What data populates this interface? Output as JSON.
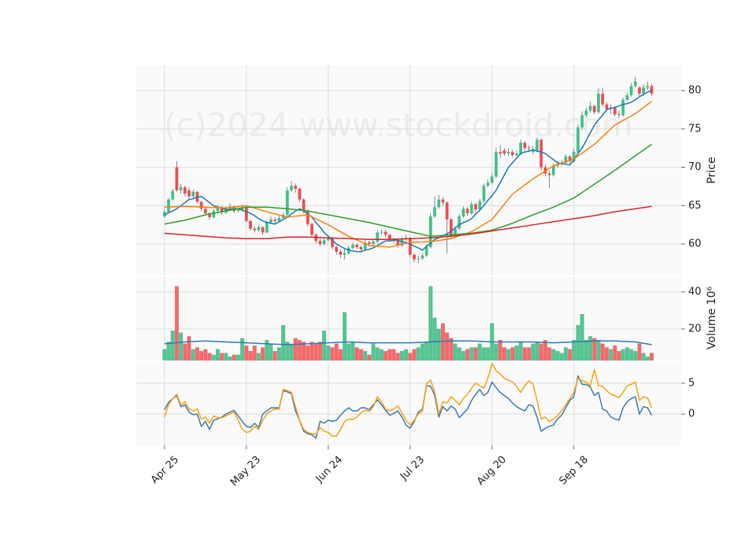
{
  "chart_data": [
    {
      "type": "candlestick",
      "watermark": "(c)2024 www.stockdroid.com",
      "ylabel": "Price",
      "ylim": [
        55.9,
        83.3
      ],
      "yticks": [
        60,
        65,
        70,
        75,
        80
      ],
      "grid": true,
      "up_color": "#3ec287",
      "down_color": "#ef4b52",
      "open": [
        63.6,
        64.2,
        65.8,
        70.0,
        67.0,
        67.4,
        67.0,
        66.2,
        66.8,
        65.5,
        64.6,
        64.0,
        63.5,
        64.3,
        64.8,
        64.1,
        64.6,
        64.9,
        64.3,
        64.5,
        64.8,
        63.0,
        62.0,
        61.8,
        62.2,
        61.5,
        62.8,
        63.2,
        63.0,
        63.4,
        63.8,
        67.0,
        67.6,
        67.2,
        65.8,
        64.3,
        62.6,
        61.2,
        60.4,
        60.0,
        60.5,
        60.8,
        59.6,
        59.0,
        58.6,
        58.8,
        59.5,
        59.9,
        59.6,
        59.3,
        60.2,
        60.0,
        60.3,
        61.5,
        61.6,
        61.2,
        60.6,
        60.4,
        59.8,
        60.6,
        60.8,
        58.6,
        58.0,
        58.1,
        58.5,
        59.6,
        63.6,
        64.8,
        65.8,
        65.4,
        63.2,
        61.0,
        62.0,
        63.6,
        64.6,
        64.0,
        65.2,
        64.5,
        65.6,
        67.6,
        68.0,
        68.8,
        72.0,
        72.2,
        71.8,
        72.0,
        71.6,
        71.8,
        73.2,
        72.5,
        72.0,
        72.2,
        73.6,
        70.0,
        69.2,
        69.0,
        70.2,
        70.4,
        70.6,
        71.4,
        70.8,
        72.0,
        75.2,
        76.8,
        77.4,
        78.0,
        77.2,
        79.6,
        78.2,
        77.6,
        77.8,
        76.9,
        76.8,
        78.8,
        79.4,
        80.6,
        80.4,
        79.6,
        80.4,
        80.6
      ],
      "high": [
        64.5,
        66.0,
        67.2,
        70.8,
        67.8,
        67.6,
        67.4,
        67.1,
        66.9,
        65.6,
        64.9,
        64.2,
        64.6,
        65.1,
        65.0,
        64.9,
        65.3,
        65.0,
        64.8,
        65.1,
        64.9,
        63.2,
        62.3,
        62.5,
        62.3,
        63.1,
        63.6,
        63.5,
        63.7,
        64.1,
        67.4,
        68.2,
        67.9,
        67.4,
        66.0,
        64.5,
        62.8,
        61.4,
        60.7,
        60.9,
        61.1,
        60.9,
        59.8,
        59.3,
        59.3,
        59.8,
        60.2,
        60.1,
        59.8,
        60.5,
        60.4,
        60.6,
        61.8,
        61.9,
        61.8,
        61.3,
        60.8,
        60.6,
        60.9,
        61.2,
        60.9,
        58.8,
        58.5,
        58.8,
        59.9,
        64.0,
        66.2,
        66.4,
        66.1,
        65.6,
        63.4,
        62.3,
        63.9,
        64.9,
        64.8,
        65.5,
        65.4,
        65.9,
        67.9,
        68.4,
        69.2,
        72.6,
        72.9,
        72.5,
        72.5,
        72.3,
        72.2,
        73.6,
        73.4,
        72.9,
        72.8,
        73.9,
        73.8,
        70.4,
        69.6,
        70.5,
        70.8,
        71.0,
        71.7,
        71.6,
        72.4,
        75.6,
        77.3,
        77.8,
        78.6,
        78.2,
        80.3,
        80.4,
        78.5,
        78.2,
        78.0,
        77.4,
        79.1,
        79.8,
        81.0,
        81.8,
        80.6,
        80.8,
        81.2,
        80.9
      ],
      "low": [
        63.4,
        64.0,
        65.6,
        66.8,
        66.6,
        66.2,
        65.9,
        66.0,
        65.3,
        64.3,
        63.7,
        63.1,
        63.3,
        64.0,
        63.8,
        63.9,
        64.4,
        64.0,
        64.1,
        64.3,
        62.8,
        61.7,
        61.5,
        61.6,
        61.2,
        61.4,
        62.6,
        62.7,
        62.8,
        63.2,
        63.6,
        66.8,
        66.7,
        65.5,
        64.0,
        62.3,
        60.9,
        60.1,
        59.7,
        59.8,
        60.3,
        59.3,
        58.6,
        58.2,
        58.0,
        58.6,
        59.3,
        59.3,
        59.0,
        59.1,
        59.7,
        59.8,
        60.1,
        61.2,
        60.9,
        60.3,
        60.1,
        59.5,
        59.6,
        60.4,
        58.3,
        57.6,
        57.5,
        57.9,
        58.3,
        59.4,
        63.4,
        64.6,
        65.0,
        58.8,
        60.7,
        60.8,
        61.8,
        63.4,
        63.7,
        63.8,
        64.2,
        64.3,
        65.4,
        67.4,
        67.8,
        68.6,
        71.2,
        71.5,
        71.5,
        71.3,
        71.4,
        71.6,
        72.2,
        72.0,
        71.7,
        72.0,
        69.6,
        68.8,
        67.3,
        68.8,
        69.9,
        70.2,
        70.4,
        70.5,
        70.6,
        71.8,
        74.9,
        76.5,
        77.1,
        76.9,
        77.0,
        77.9,
        77.3,
        77.0,
        76.6,
        76.4,
        76.6,
        78.6,
        79.2,
        80.4,
        79.3,
        79.3,
        80.1,
        79.3
      ],
      "close": [
        64.2,
        65.8,
        66.9,
        67.0,
        67.4,
        66.6,
        66.2,
        66.8,
        65.5,
        64.6,
        64.0,
        63.5,
        64.3,
        64.8,
        64.1,
        64.6,
        64.9,
        64.3,
        64.5,
        64.8,
        63.0,
        62.0,
        61.8,
        62.2,
        61.5,
        62.8,
        63.2,
        63.0,
        63.4,
        63.8,
        67.0,
        67.6,
        67.2,
        65.8,
        64.3,
        62.6,
        61.2,
        60.4,
        60.0,
        60.5,
        60.8,
        59.6,
        59.0,
        58.6,
        58.8,
        59.5,
        59.9,
        59.6,
        59.3,
        60.2,
        60.0,
        60.3,
        61.5,
        61.6,
        61.2,
        60.6,
        60.4,
        59.8,
        60.6,
        60.8,
        58.6,
        58.0,
        58.1,
        58.5,
        59.6,
        63.6,
        64.8,
        65.8,
        65.4,
        63.2,
        61.0,
        62.0,
        63.6,
        64.6,
        64.0,
        65.2,
        64.5,
        65.6,
        67.6,
        68.0,
        68.8,
        72.0,
        71.8,
        71.8,
        72.0,
        71.6,
        71.8,
        73.2,
        72.5,
        72.4,
        72.2,
        73.6,
        70.0,
        69.2,
        69.0,
        70.2,
        70.4,
        70.6,
        71.4,
        70.8,
        72.0,
        75.2,
        76.8,
        77.4,
        78.0,
        77.2,
        79.6,
        78.2,
        77.6,
        77.8,
        76.9,
        76.8,
        78.8,
        79.4,
        80.6,
        81.2,
        79.6,
        80.4,
        80.6,
        79.6
      ],
      "series": [
        {
          "color": "#1f77b4",
          "values": [
            63.8,
            64.1,
            64.3,
            64.6,
            65.0,
            65.4,
            65.8,
            65.9,
            66.1,
            66.2,
            65.8,
            65.4,
            65.0,
            64.8,
            64.7,
            64.5,
            64.5,
            64.6,
            64.6,
            64.4,
            64.2,
            64.0,
            63.7,
            63.3,
            63.0,
            62.8,
            62.7,
            62.6,
            62.9,
            63.2,
            63.5,
            63.9,
            64.3,
            64.6,
            64.3,
            63.9,
            63.5,
            62.8,
            62.2,
            61.5,
            61.0,
            60.5,
            60.0,
            59.7,
            59.4,
            59.2,
            59.1,
            59.0,
            59.0,
            59.2,
            59.3,
            59.5,
            59.8,
            60.1,
            60.4,
            60.4,
            60.5,
            60.5,
            60.3,
            60.2,
            60.0,
            59.7,
            59.5,
            59.2,
            59.7,
            60.1,
            60.6,
            60.8,
            61.1,
            61.3,
            61.7,
            62.1,
            62.5,
            62.8,
            63.0,
            63.3,
            63.9,
            64.4,
            65.0,
            65.7,
            66.3,
            67.0,
            68.0,
            69.0,
            70.0,
            70.6,
            71.2,
            71.8,
            72.0,
            72.1,
            72.3,
            72.1,
            72.0,
            71.8,
            71.4,
            71.0,
            70.6,
            70.5,
            70.4,
            70.3,
            71.0,
            71.8,
            72.5,
            73.5,
            74.5,
            75.5,
            76.2,
            76.8,
            77.5,
            77.7,
            77.8,
            78.0,
            78.2,
            78.3,
            78.5,
            78.8,
            79.2,
            79.5,
            79.8,
            80.0
          ]
        },
        {
          "color": "#ff7f0e",
          "x": [
            0,
            5,
            10,
            15,
            20,
            25,
            30,
            35,
            40,
            45,
            50,
            55,
            60,
            65,
            70,
            75,
            80,
            85,
            90,
            95,
            100,
            105,
            110,
            115,
            119
          ],
          "values": [
            64.8,
            64.9,
            64.8,
            64.7,
            65.0,
            64.2,
            63.5,
            63.8,
            62.5,
            61.0,
            59.8,
            59.6,
            60.2,
            60.3,
            60.7,
            61.6,
            63.2,
            66.5,
            68.5,
            70.2,
            71.1,
            73.0,
            75.5,
            77.0,
            78.6
          ]
        },
        {
          "color": "#2ca02c",
          "x": [
            0,
            5,
            10,
            15,
            20,
            25,
            30,
            35,
            40,
            45,
            50,
            55,
            60,
            65,
            70,
            75,
            80,
            85,
            90,
            95,
            100,
            105,
            110,
            115,
            119
          ],
          "values": [
            62.6,
            63.1,
            63.8,
            64.3,
            64.8,
            64.8,
            64.6,
            64.3,
            63.8,
            63.3,
            62.8,
            62.2,
            61.6,
            61.0,
            61.2,
            61.4,
            61.8,
            62.7,
            63.8,
            64.8,
            66.0,
            67.8,
            69.6,
            71.5,
            73.0
          ]
        },
        {
          "color": "#d62728",
          "x": [
            0,
            5,
            10,
            15,
            20,
            25,
            30,
            35,
            40,
            45,
            50,
            55,
            60,
            65,
            70,
            75,
            80,
            85,
            90,
            95,
            100,
            105,
            110,
            115,
            119
          ],
          "values": [
            61.4,
            61.2,
            61.0,
            60.8,
            60.7,
            60.7,
            60.9,
            60.9,
            60.8,
            60.7,
            60.6,
            60.6,
            60.7,
            60.8,
            61.0,
            61.3,
            61.7,
            62.1,
            62.5,
            62.9,
            63.3,
            63.7,
            64.2,
            64.6,
            64.9
          ]
        }
      ]
    },
    {
      "type": "bar",
      "ylabel": "Volume 10⁶",
      "ylim": [
        3,
        48.9
      ],
      "yticks": [
        20,
        40
      ],
      "grid": true,
      "up_color": "#4cc990",
      "down_color": "#ff6567",
      "values": [
        9,
        13,
        19,
        43,
        18,
        12,
        16,
        9,
        10,
        8,
        9,
        7,
        6,
        9,
        7,
        7,
        5,
        6,
        6,
        15,
        11,
        8,
        11,
        7,
        10,
        14,
        12,
        8,
        10,
        22,
        13,
        12,
        15,
        14,
        13,
        11,
        13,
        12,
        13,
        19,
        11,
        10,
        12,
        9,
        29,
        12,
        13,
        10,
        9,
        8,
        6,
        12,
        10,
        9,
        8,
        9,
        9,
        7,
        8,
        9,
        7,
        9,
        10,
        12,
        13,
        43,
        26,
        20,
        23,
        18,
        15,
        12,
        10,
        8,
        9,
        10,
        10,
        12,
        10,
        10,
        23,
        12,
        14,
        10,
        9,
        10,
        11,
        13,
        10,
        10,
        12,
        13,
        12,
        14,
        10,
        9,
        8,
        7,
        10,
        9,
        14,
        22,
        28,
        14,
        16,
        15,
        14,
        12,
        10,
        9,
        11,
        8,
        9,
        10,
        9,
        8,
        12,
        7,
        5,
        7
      ],
      "series": [
        {
          "color": "#2f7bb5",
          "x": [
            0,
            5,
            10,
            15,
            20,
            25,
            30,
            35,
            40,
            45,
            50,
            55,
            60,
            65,
            70,
            75,
            80,
            85,
            90,
            95,
            100,
            105,
            110,
            115,
            119
          ],
          "values": [
            12,
            13,
            13.5,
            13,
            12.5,
            12,
            11.5,
            12,
            12.5,
            13,
            12.5,
            12.5,
            12.5,
            13,
            13.5,
            13.5,
            13,
            13,
            13,
            12.5,
            13,
            13.5,
            13.5,
            13,
            11.5
          ]
        }
      ]
    },
    {
      "type": "line",
      "ylim": [
        -5.1,
        8.7
      ],
      "yticks": [
        0,
        5
      ],
      "grid": true,
      "xlim": [
        -6.9,
        126.2
      ],
      "xticks": [
        {
          "value": 0,
          "label": "Apr 25"
        },
        {
          "value": 20,
          "label": "May 23"
        },
        {
          "value": 40,
          "label": "Jun 24"
        },
        {
          "value": 60,
          "label": "Jul 23"
        },
        {
          "value": 80,
          "label": "Aug 20"
        },
        {
          "value": 100,
          "label": "Sep 18"
        }
      ],
      "series": [
        {
          "color": "#3b7bb3",
          "values": [
            0.7,
            1.9,
            2.5,
            3.0,
            1.2,
            1.5,
            0.3,
            -0.1,
            0.0,
            -2.0,
            -1.2,
            -2.5,
            -1.0,
            -0.8,
            -0.5,
            0.0,
            0.3,
            0.6,
            -0.3,
            -1.2,
            -2.0,
            -2.2,
            -1.5,
            -2.2,
            0.0,
            0.5,
            1.0,
            1.0,
            1.0,
            3.8,
            3.6,
            3.3,
            0.5,
            -1.0,
            -2.8,
            -3.2,
            -3.4,
            -3.9,
            -1.2,
            -1.5,
            -1.0,
            -1.2,
            -1.0,
            -0.2,
            0.5,
            1.0,
            0.5,
            0.5,
            1.0,
            1.0,
            0.7,
            1.5,
            2.3,
            1.5,
            0.6,
            -0.2,
            0.1,
            0.5,
            -0.5,
            -1.8,
            -2.3,
            -1.2,
            0.3,
            0.8,
            4.6,
            4.5,
            3.0,
            -0.5,
            1.2,
            0.5,
            1.3,
            0.8,
            -0.6,
            0.1,
            0.8,
            2.2,
            3.2,
            4.0,
            3.0,
            3.5,
            5.2,
            4.3,
            3.5,
            3.0,
            2.5,
            1.8,
            1.2,
            0.8,
            0.5,
            1.5,
            1.3,
            -0.5,
            -2.8,
            -2.3,
            -2.0,
            -1.8,
            -0.8,
            -0.2,
            1.0,
            2.2,
            2.8,
            6.2,
            4.8,
            4.8,
            4.4,
            3.0,
            3.5,
            0.8,
            0.5,
            -0.5,
            -0.8,
            -1.0,
            1.0,
            2.0,
            2.5,
            2.8,
            0.0,
            1.2,
            1.0,
            -0.2
          ]
        },
        {
          "color": "#f5a30f",
          "values": [
            -0.5,
            1.5,
            2.5,
            3.2,
            1.5,
            2.0,
            0.8,
            0.5,
            0.8,
            -0.8,
            -0.5,
            -1.5,
            -0.3,
            -0.6,
            -0.6,
            -0.3,
            0.0,
            0.3,
            -1.0,
            -2.5,
            -3.0,
            -2.8,
            -2.0,
            -2.5,
            -1.0,
            0.0,
            0.5,
            0.8,
            0.8,
            4.0,
            3.8,
            3.5,
            1.2,
            -1.0,
            -2.5,
            -3.0,
            -3.2,
            -3.3,
            -2.2,
            -2.8,
            -3.0,
            -3.6,
            -3.6,
            -2.5,
            -1.2,
            -0.8,
            -0.9,
            -0.5,
            0.2,
            0.6,
            0.4,
            1.2,
            2.8,
            2.0,
            0.8,
            0.5,
            0.8,
            1.3,
            0.2,
            -1.0,
            -1.8,
            -1.0,
            0.0,
            0.4,
            5.0,
            5.5,
            3.6,
            0.0,
            2.0,
            1.8,
            2.8,
            2.2,
            1.5,
            2.5,
            3.2,
            4.2,
            5.0,
            4.6,
            4.2,
            5.8,
            8.2,
            7.0,
            6.5,
            5.8,
            5.5,
            5.2,
            4.5,
            3.5,
            4.6,
            5.4,
            4.9,
            2.2,
            -0.8,
            -0.5,
            -1.2,
            -0.8,
            -0.3,
            0.5,
            1.5,
            2.5,
            3.5,
            5.8,
            5.4,
            5.2,
            4.6,
            7.2,
            4.6,
            4.5,
            3.8,
            3.2,
            3.0,
            2.6,
            3.5,
            4.6,
            4.8,
            5.2,
            2.2,
            2.8,
            2.6,
            1.0
          ]
        }
      ]
    }
  ]
}
